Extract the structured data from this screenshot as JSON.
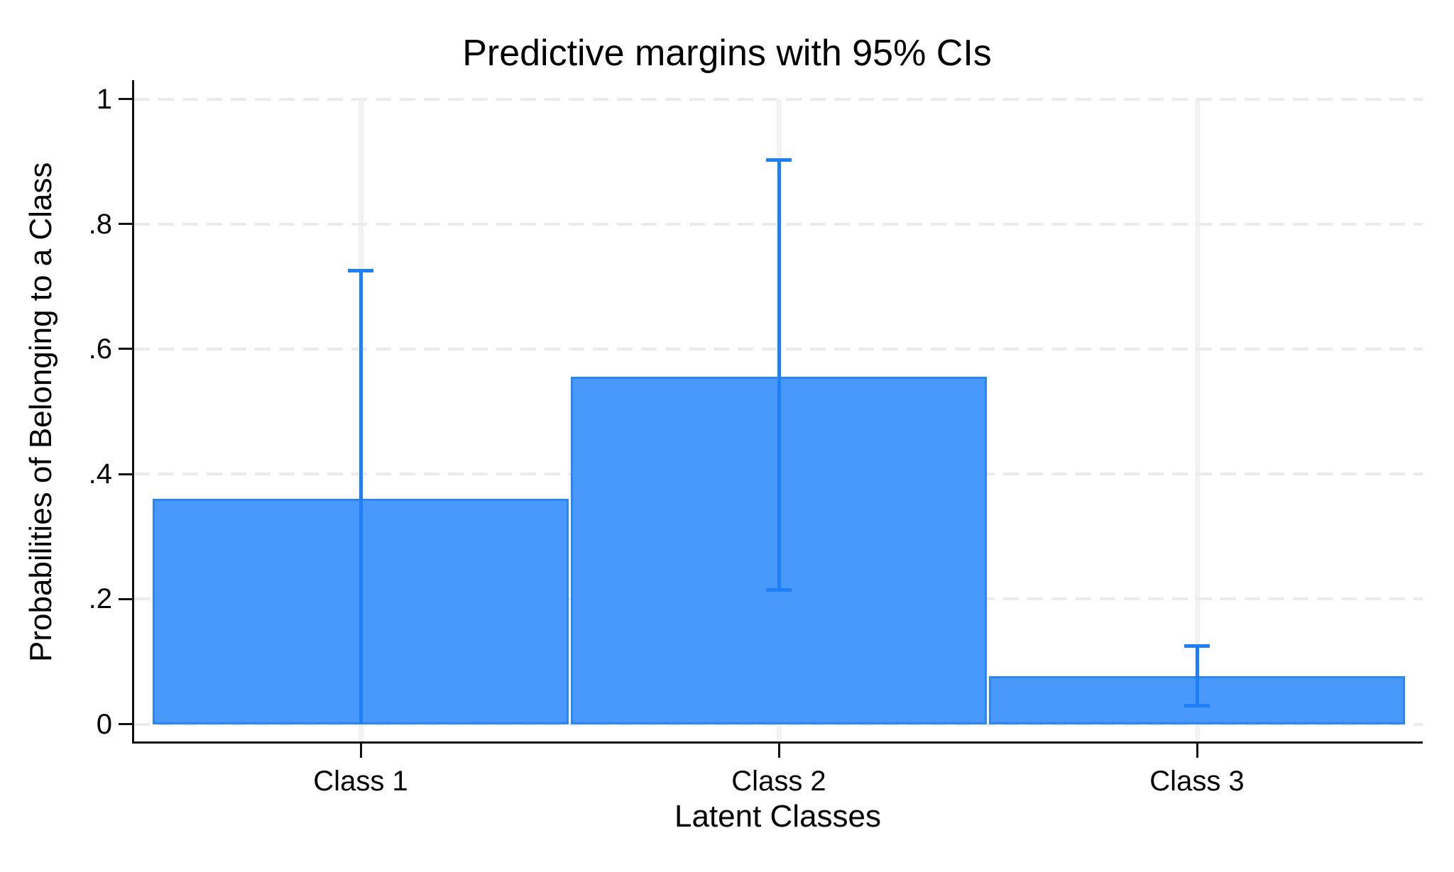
{
  "title": "Predictive margins with 95% CIs",
  "chart_data": {
    "type": "bar",
    "title": "Predictive margins with 95% CIs",
    "xlabel": "Latent Classes",
    "ylabel": "Probabilities of Belonging to a Class",
    "categories": [
      "Class 1",
      "Class 2",
      "Class 3"
    ],
    "values": [
      0.36,
      0.556,
      0.077
    ],
    "error_bars": {
      "ci_level": "95%",
      "ci_low": [
        0.0,
        0.214,
        0.03
      ],
      "ci_high": [
        0.725,
        0.902,
        0.125
      ]
    },
    "ylim": [
      0,
      1
    ],
    "yticks": [
      {
        "value": 0.0,
        "label": "0"
      },
      {
        "value": 0.2,
        "label": ".2"
      },
      {
        "value": 0.4,
        "label": ".4"
      },
      {
        "value": 0.6,
        "label": ".6"
      },
      {
        "value": 0.8,
        "label": ".8"
      },
      {
        "value": 1.0,
        "label": "1"
      }
    ],
    "grid": {
      "horizontal": "dashed",
      "vertical": "solid at category centers"
    },
    "legend": "none",
    "colors": {
      "bar_fill": "#4899FB",
      "bar_border": "#2B85F8",
      "ci_line": "#1E7FF8",
      "axis": "#111111",
      "grid_horizontal": "#EBEBEB",
      "grid_vertical": "#F2F2F2",
      "text": "#000000",
      "background": "#FFFFFF"
    }
  }
}
